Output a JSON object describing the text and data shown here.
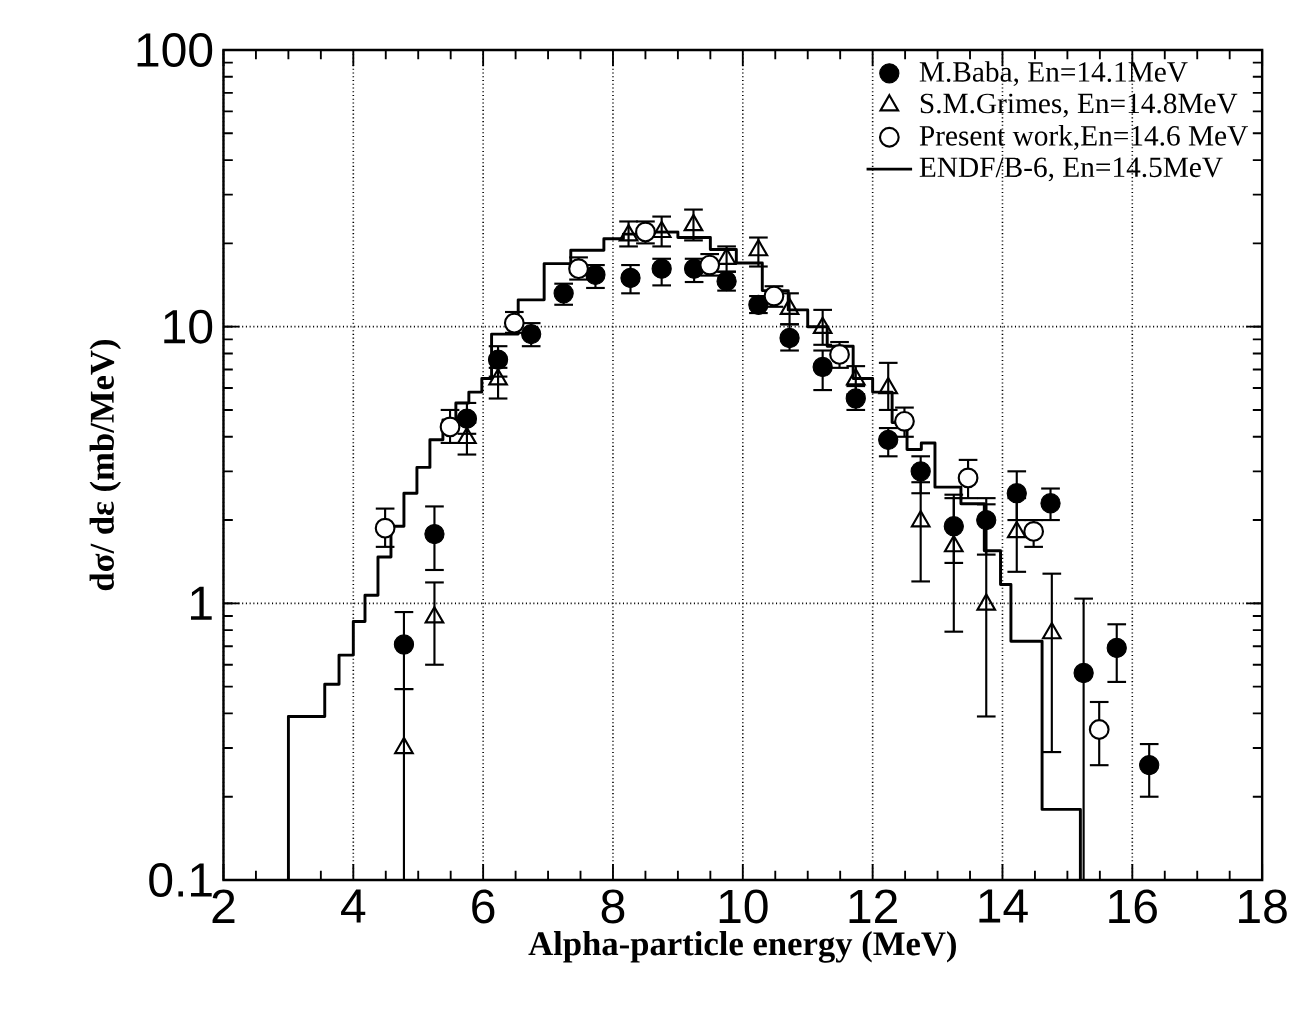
{
  "chart_data": {
    "type": "scatter",
    "xlabel": "Alpha-particle   energy   (MeV)",
    "ylabel": "dσ/ dε   (mb/MeV)",
    "xlim": [
      2,
      18
    ],
    "ylim": [
      0.1,
      100
    ],
    "xticks": [
      2,
      4,
      6,
      8,
      10,
      12,
      14,
      16,
      18
    ],
    "yticks": [
      0.1,
      1,
      10,
      100
    ],
    "log": true,
    "grid": true,
    "legend": "top right",
    "series": [
      {
        "name": "M.Baba,        En=14.1MeV",
        "marker": "circle",
        "color": "#000000",
        "x": [
          4.78,
          5.25,
          5.75,
          6.23,
          6.74,
          7.24,
          7.73,
          8.27,
          8.75,
          9.25,
          9.75,
          10.24,
          10.72,
          11.23,
          11.74,
          12.24,
          12.74,
          13.25,
          13.75,
          14.22,
          14.74,
          15.25,
          15.76,
          16.26
        ],
        "values": [
          0.71,
          1.78,
          4.65,
          7.6,
          9.4,
          13.2,
          15.4,
          15.0,
          16.2,
          16.2,
          14.6,
          12.0,
          9.1,
          7.15,
          5.5,
          3.9,
          3.0,
          1.9,
          2.0,
          2.5,
          2.3,
          0.56,
          0.69,
          0.26
        ],
        "errors": [
          [
            0.49,
            0.93
          ],
          [
            1.32,
            2.24
          ],
          [
            4.1,
            5.3
          ],
          [
            6.6,
            8.5
          ],
          [
            8.5,
            10.3
          ],
          [
            12.0,
            14.3
          ],
          [
            13.8,
            16.7
          ],
          [
            13.2,
            16.7
          ],
          [
            14.1,
            17.6
          ],
          [
            14.5,
            17.6
          ],
          [
            13.5,
            15.8
          ],
          [
            11.2,
            12.9
          ],
          [
            8.2,
            10.2
          ],
          [
            5.9,
            8.2
          ],
          [
            5.0,
            6.1
          ],
          [
            3.4,
            4.3
          ],
          [
            2.5,
            3.4
          ],
          [
            1.4,
            2.4
          ],
          [
            1.5,
            2.4
          ],
          [
            2.0,
            3.0
          ],
          [
            2.0,
            2.6
          ],
          [
            0.1,
            1.04
          ],
          [
            0.52,
            0.84
          ],
          [
            0.2,
            0.31
          ]
        ]
      },
      {
        "name": "S.M.Grimes,  En=14.8MeV",
        "marker": "triangle",
        "color": "#000000",
        "x": [
          4.78,
          5.25,
          5.75,
          6.23,
          8.24,
          8.75,
          9.24,
          9.75,
          10.24,
          10.72,
          11.23,
          11.74,
          12.24,
          12.74,
          13.25,
          13.75,
          14.22,
          14.76
        ],
        "values": [
          0.3,
          0.89,
          3.96,
          6.45,
          21.4,
          22.0,
          23.3,
          17.6,
          18.9,
          11.6,
          9.9,
          6.45,
          6.0,
          1.98,
          1.61,
          0.99,
          1.81,
          0.78
        ],
        "errors": [
          [
            0.1,
            0.49
          ],
          [
            0.6,
            1.19
          ],
          [
            3.45,
            4.5
          ],
          [
            5.5,
            7.1
          ],
          [
            19.5,
            24.0
          ],
          [
            19.5,
            25.0
          ],
          [
            20.5,
            26.5
          ],
          [
            15.8,
            19.5
          ],
          [
            16.5,
            21.0
          ],
          [
            10.2,
            13.2
          ],
          [
            8.6,
            11.5
          ],
          [
            5.7,
            7.2
          ],
          [
            5.0,
            7.4
          ],
          [
            1.2,
            2.74
          ],
          [
            0.79,
            2.47
          ],
          [
            0.39,
            2.28
          ],
          [
            1.3,
            2.4
          ],
          [
            0.29,
            1.28
          ]
        ]
      },
      {
        "name": "Present work,En=14.6 MeV",
        "marker": "circle",
        "color": "#000000",
        "x": [
          4.49,
          5.49,
          6.48,
          7.47,
          8.5,
          9.49,
          10.48,
          11.49,
          12.49,
          13.47,
          14.48,
          15.49
        ],
        "values": [
          1.87,
          4.34,
          10.3,
          16.2,
          22.0,
          16.7,
          12.9,
          7.94,
          4.55,
          2.84,
          1.82,
          0.35
        ],
        "errors": [
          [
            1.6,
            2.2
          ],
          [
            3.8,
            5.0
          ],
          [
            9.5,
            11.3
          ],
          [
            14.8,
            17.8
          ],
          [
            20.0,
            24.0
          ],
          [
            15.3,
            18.3
          ],
          [
            11.8,
            14.0
          ],
          [
            7.1,
            8.8
          ],
          [
            4.0,
            5.1
          ],
          [
            2.4,
            3.3
          ],
          [
            1.6,
            2.0
          ],
          [
            0.26,
            0.44
          ]
        ]
      },
      {
        "name": "ENDF/B-6,    En=14.5MeV",
        "type": "step",
        "color": "#000000",
        "x": [
          3.0,
          3.0,
          3.56,
          3.78,
          4.0,
          4.18,
          4.38,
          4.58,
          4.78,
          4.98,
          5.18,
          5.38,
          5.58,
          5.78,
          5.98,
          6.13,
          6.54,
          6.94,
          7.35,
          7.86,
          8.16,
          8.5,
          9.0,
          9.5,
          9.9,
          10.3,
          10.7,
          11.0,
          11.3,
          11.7,
          12.0,
          12.3,
          12.53,
          12.75,
          12.96,
          13.36,
          13.72,
          13.97,
          14.13,
          14.61,
          15.2
        ],
        "values": [
          0.1,
          0.39,
          0.51,
          0.65,
          0.86,
          1.07,
          1.47,
          1.9,
          2.5,
          3.1,
          3.9,
          4.6,
          5.3,
          5.8,
          6.5,
          9.4,
          12.5,
          16.9,
          18.9,
          20.8,
          21.6,
          22.0,
          21.0,
          19.0,
          17.0,
          13.5,
          11.5,
          10.0,
          8.5,
          6.5,
          5.8,
          4.5,
          3.6,
          3.8,
          2.63,
          2.29,
          1.55,
          1.17,
          0.73,
          0.18,
          0.1
        ]
      }
    ]
  }
}
